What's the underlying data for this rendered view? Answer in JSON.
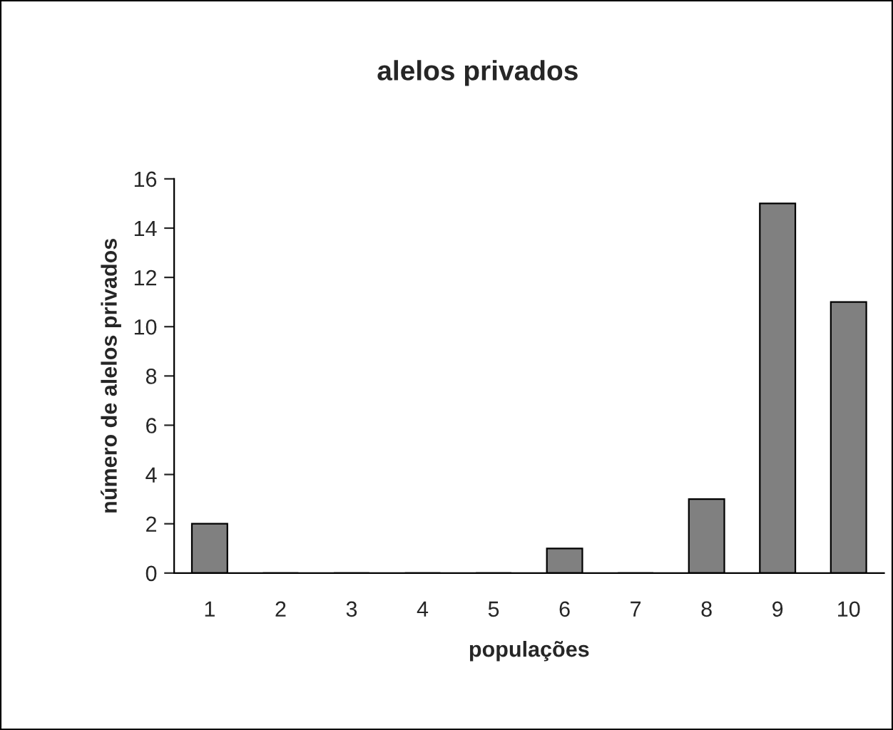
{
  "chart_data": {
    "type": "bar",
    "title": "alelos privados",
    "xlabel": "populações",
    "ylabel": "número de alelos privados",
    "categories": [
      "1",
      "2",
      "3",
      "4",
      "5",
      "6",
      "7",
      "8",
      "9",
      "10"
    ],
    "values": [
      2,
      0,
      0,
      0,
      0,
      1,
      0,
      3,
      15,
      11
    ],
    "color": "#808080",
    "ylim": [
      0,
      16
    ],
    "yticks": [
      0,
      2,
      4,
      6,
      8,
      10,
      12,
      14,
      16
    ],
    "grid": false,
    "legend": false
  }
}
